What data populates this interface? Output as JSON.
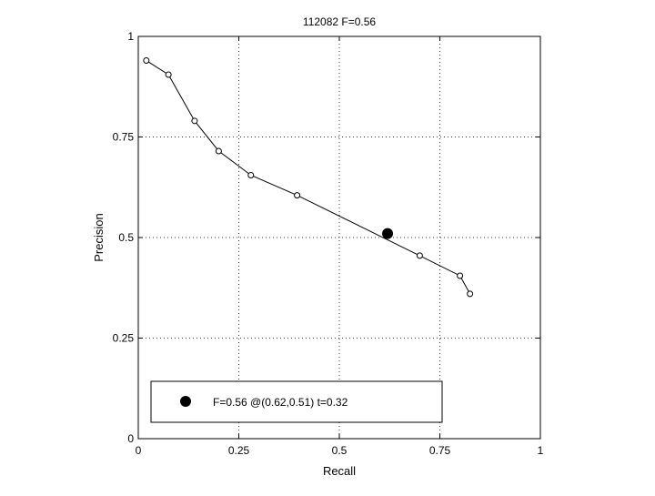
{
  "chart_data": {
    "type": "line",
    "title": "112082 F=0.56",
    "xlabel": "Recall",
    "ylabel": "Precision",
    "xlim": [
      0,
      1
    ],
    "ylim": [
      0,
      1
    ],
    "grid": true,
    "x_ticks": [
      0,
      0.25,
      0.5,
      0.75,
      1
    ],
    "y_ticks": [
      0,
      0.25,
      0.5,
      0.75,
      1
    ],
    "x_tick_labels": [
      "0",
      "0.25",
      "0.5",
      "0.75",
      "1"
    ],
    "y_tick_labels": [
      "0",
      "0.25",
      "0.5",
      "0.75",
      "1"
    ],
    "series": [
      {
        "x": [
          0.02,
          0.075,
          0.14,
          0.2,
          0.28,
          0.395,
          0.7,
          0.8,
          0.825
        ],
        "y": [
          0.94,
          0.905,
          0.79,
          0.715,
          0.655,
          0.605,
          0.455,
          0.405,
          0.36
        ]
      }
    ],
    "best_point": {
      "x": 0.62,
      "y": 0.51
    },
    "legend": {
      "label": "F=0.56 @(0.62,0.51) t=0.32",
      "placement": "bottom-left"
    },
    "colors": {
      "line": "#000000",
      "grid": "#000000",
      "background": "#ffffff"
    }
  }
}
